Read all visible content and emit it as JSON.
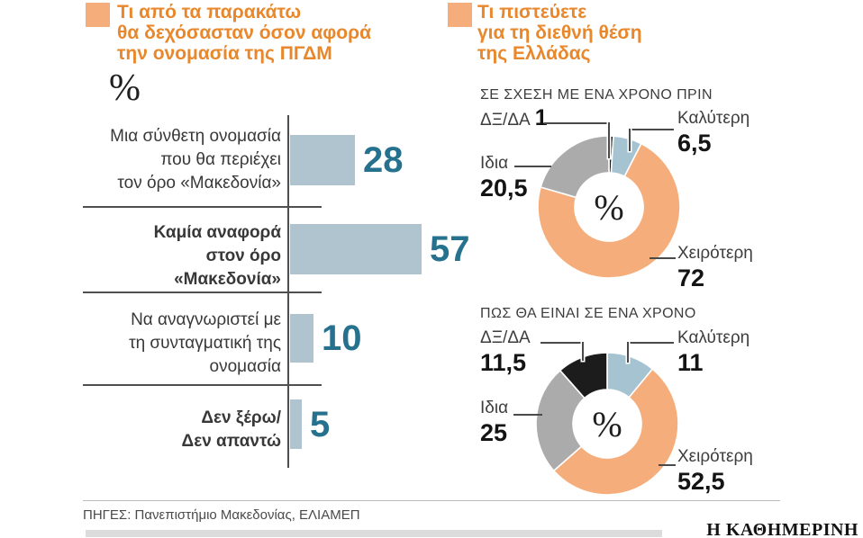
{
  "colors": {
    "accent_orange": "#F5AE7B",
    "title_orange": "#E8872B",
    "bar_blue": "#AFC4CE",
    "donut_blue": "#A6C3D2",
    "slice_gray": "#ABABAB",
    "slice_black": "#1C1C1C",
    "value_teal": "#26718E",
    "footer_bar_gray": "#DCDCDC"
  },
  "left_chart": {
    "title": "Τι από τα παρακάτω\nθα δεχόσασταν όσον αφορά\nτην ονομασία της ΠΓΔΜ",
    "unit_symbol": "%",
    "rows": [
      {
        "label": "Μια σύνθετη ονομασία\nπου θα περιέχει\nτον όρο «Μακεδονία»",
        "value": 28,
        "value_label": "28",
        "bold": false
      },
      {
        "label": "Καμία αναφορά\nστον όρο\n«Μακεδονία»",
        "value": 57,
        "value_label": "57",
        "bold": true
      },
      {
        "label": "Να αναγνωριστεί με\nτη συνταγματική της\nονομασία",
        "value": 10,
        "value_label": "10",
        "bold": false
      },
      {
        "label": "Δεν ξέρω/\nΔεν απαντώ",
        "value": 5,
        "value_label": "5",
        "bold": true
      }
    ]
  },
  "right_charts": {
    "title": "Τι πιστεύετε\nγια τη διεθνή θέση\nτης Ελλάδας",
    "donuts": [
      {
        "heading": "ΣΕ ΣΧΕΣΗ ΜΕ ΕΝΑ ΧΡΟΝΟ ΠΡΙΝ",
        "center_label": "%",
        "slices": [
          {
            "name": "ΔΞ/ΔΑ",
            "value": 1,
            "value_label": "1",
            "color": "#1C1C1C"
          },
          {
            "name": "Καλύτερη",
            "value": 6.5,
            "value_label": "6,5",
            "color": "#A6C3D2"
          },
          {
            "name": "Χειρότερη",
            "value": 72,
            "value_label": "72",
            "color": "#F5AE7B"
          },
          {
            "name": "Ιδια",
            "value": 20.5,
            "value_label": "20,5",
            "color": "#ABABAB"
          }
        ]
      },
      {
        "heading": "ΠΩΣ ΘΑ ΕΙΝΑΙ ΣΕ ΕΝΑ ΧΡΟΝΟ",
        "center_label": "%",
        "slices": [
          {
            "name": "Καλύτερη",
            "value": 11,
            "value_label": "11",
            "color": "#A6C3D2"
          },
          {
            "name": "Χειρότερη",
            "value": 52.5,
            "value_label": "52,5",
            "color": "#F5AE7B"
          },
          {
            "name": "Ιδια",
            "value": 25,
            "value_label": "25",
            "color": "#ABABAB"
          },
          {
            "name": "ΔΞ/ΔΑ",
            "value": 11.5,
            "value_label": "11,5",
            "color": "#1C1C1C"
          }
        ]
      }
    ]
  },
  "footer": {
    "sources": "ΠΗΓΕΣ: Πανεπιστήμιο Μακεδονίας, ΕΛΙΑΜΕΠ",
    "brand": "Η ΚΑΘΗΜΕΡΙΝΗ"
  },
  "chart_data": [
    {
      "type": "bar",
      "orientation": "horizontal",
      "title": "Τι από τα παρακάτω θα δεχόσασταν όσον αφορά την ονομασία της ΠΓΔΜ",
      "unit": "%",
      "categories": [
        "Μια σύνθετη ονομασία που θα περιέχει τον όρο «Μακεδονία»",
        "Καμία αναφορά στον όρο «Μακεδονία»",
        "Να αναγνωριστεί με τη συνταγματική της ονομασία",
        "Δεν ξέρω/Δεν απαντώ"
      ],
      "values": [
        28,
        57,
        10,
        5
      ],
      "xlim": [
        0,
        60
      ],
      "grid": false,
      "bar_color": "#AFC4CE",
      "value_labels": [
        "28",
        "57",
        "10",
        "5"
      ]
    },
    {
      "type": "pie",
      "subtype": "donut",
      "title": "Τι πιστεύετε για τη διεθνή θέση της Ελλάδας — ΣΕ ΣΧΕΣΗ ΜΕ ΕΝΑ ΧΡΟΝΟ ΠΡΙΝ",
      "unit": "%",
      "categories": [
        "ΔΞ/ΔΑ",
        "Καλύτερη",
        "Χειρότερη",
        "Ιδια"
      ],
      "values": [
        1,
        6.5,
        72,
        20.5
      ],
      "colors": [
        "#1C1C1C",
        "#A6C3D2",
        "#F5AE7B",
        "#ABABAB"
      ],
      "start_angle_deg_clockwise_from_top": 0
    },
    {
      "type": "pie",
      "subtype": "donut",
      "title": "Τι πιστεύετε για τη διεθνή θέση της Ελλάδας — ΠΩΣ ΘΑ ΕΙΝΑΙ ΣΕ ΕΝΑ ΧΡΟΝΟ",
      "unit": "%",
      "categories": [
        "Καλύτερη",
        "Χειρότερη",
        "Ιδια",
        "ΔΞ/ΔΑ"
      ],
      "values": [
        11,
        52.5,
        25,
        11.5
      ],
      "colors": [
        "#A6C3D2",
        "#F5AE7B",
        "#ABABAB",
        "#1C1C1C"
      ],
      "start_angle_deg_clockwise_from_top": 0
    }
  ]
}
